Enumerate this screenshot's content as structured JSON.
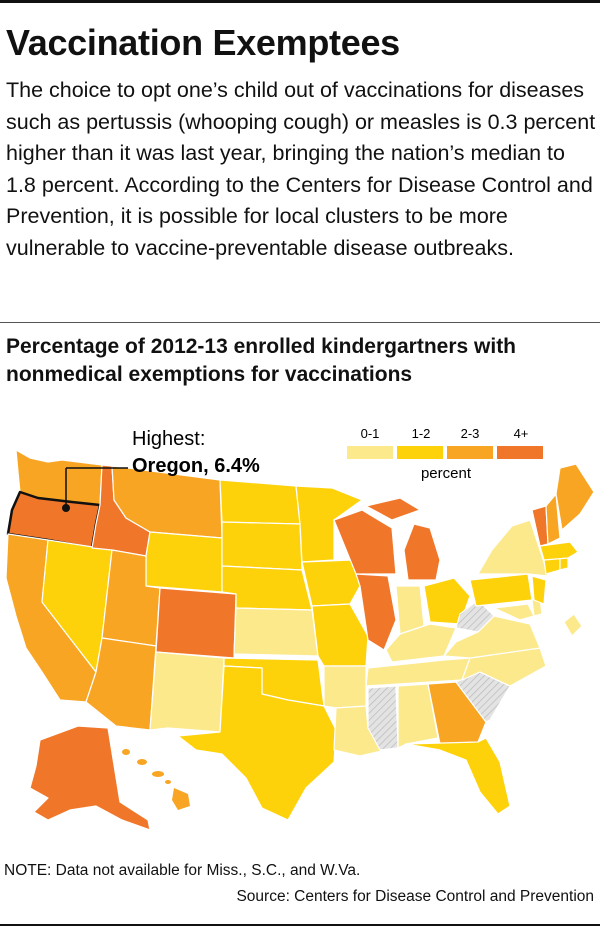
{
  "title": "Vaccination Exemptees",
  "intro": "The choice to opt one’s child out of vaccinations for diseases such as pertussis (whooping cough) or measles is 0.3 percent higher than it was last year, bringing the nation’s median to 1.8 percent. According to the Centers for Disease Control and Prevention, it is possible for local clusters to be more vulnerable to vaccine-preventable disease outbreaks.",
  "subtitle": "Percentage of 2012-13 enrolled kindergartners with nonmedical exemptions for vaccinations",
  "callout": {
    "label": "Highest:",
    "value": "Oregon, 6.4%"
  },
  "legend": {
    "unit": "percent",
    "bins": [
      {
        "label": "0-1",
        "color": "#fbe98b"
      },
      {
        "label": "1-2",
        "color": "#fed20b"
      },
      {
        "label": "2-3",
        "color": "#f8a523"
      },
      {
        "label": "4+",
        "color": "#f0762a"
      }
    ]
  },
  "no_data_color": "#d9d9d9",
  "note": "NOTE: Data not available for Miss., S.C., and W.Va.",
  "source": "Source: Centers for Disease Control and Prevention"
}
